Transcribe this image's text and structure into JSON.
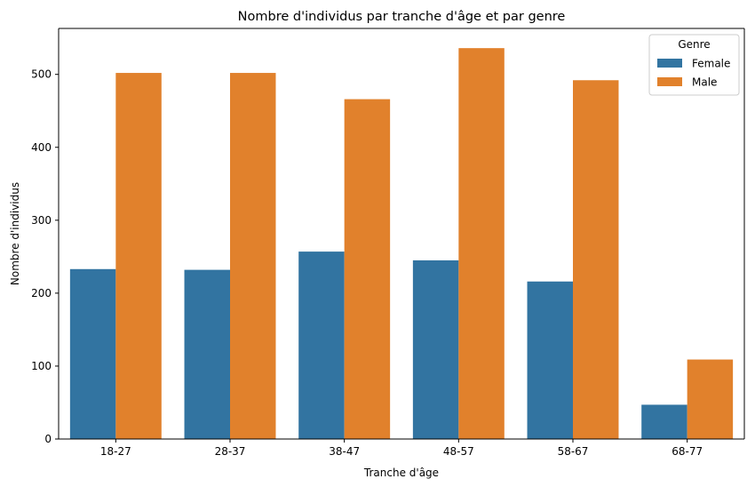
{
  "chart_data": {
    "type": "bar",
    "title": "Nombre d'individus par tranche d'âge et par genre",
    "xlabel": "Tranche d'âge",
    "ylabel": "Nombre d'individus",
    "categories": [
      "18-27",
      "28-37",
      "38-47",
      "48-57",
      "58-67",
      "68-77"
    ],
    "series": [
      {
        "name": "Female",
        "color": "#3274a1",
        "values": [
          233,
          232,
          257,
          245,
          216,
          47
        ]
      },
      {
        "name": "Male",
        "color": "#e1812c",
        "values": [
          502,
          502,
          466,
          536,
          492,
          109
        ]
      }
    ],
    "ylim": [
      0,
      563
    ],
    "yticks": [
      0,
      100,
      200,
      300,
      400,
      500
    ],
    "legend": {
      "title": "Genre",
      "position": "top-right"
    },
    "grid": false
  }
}
